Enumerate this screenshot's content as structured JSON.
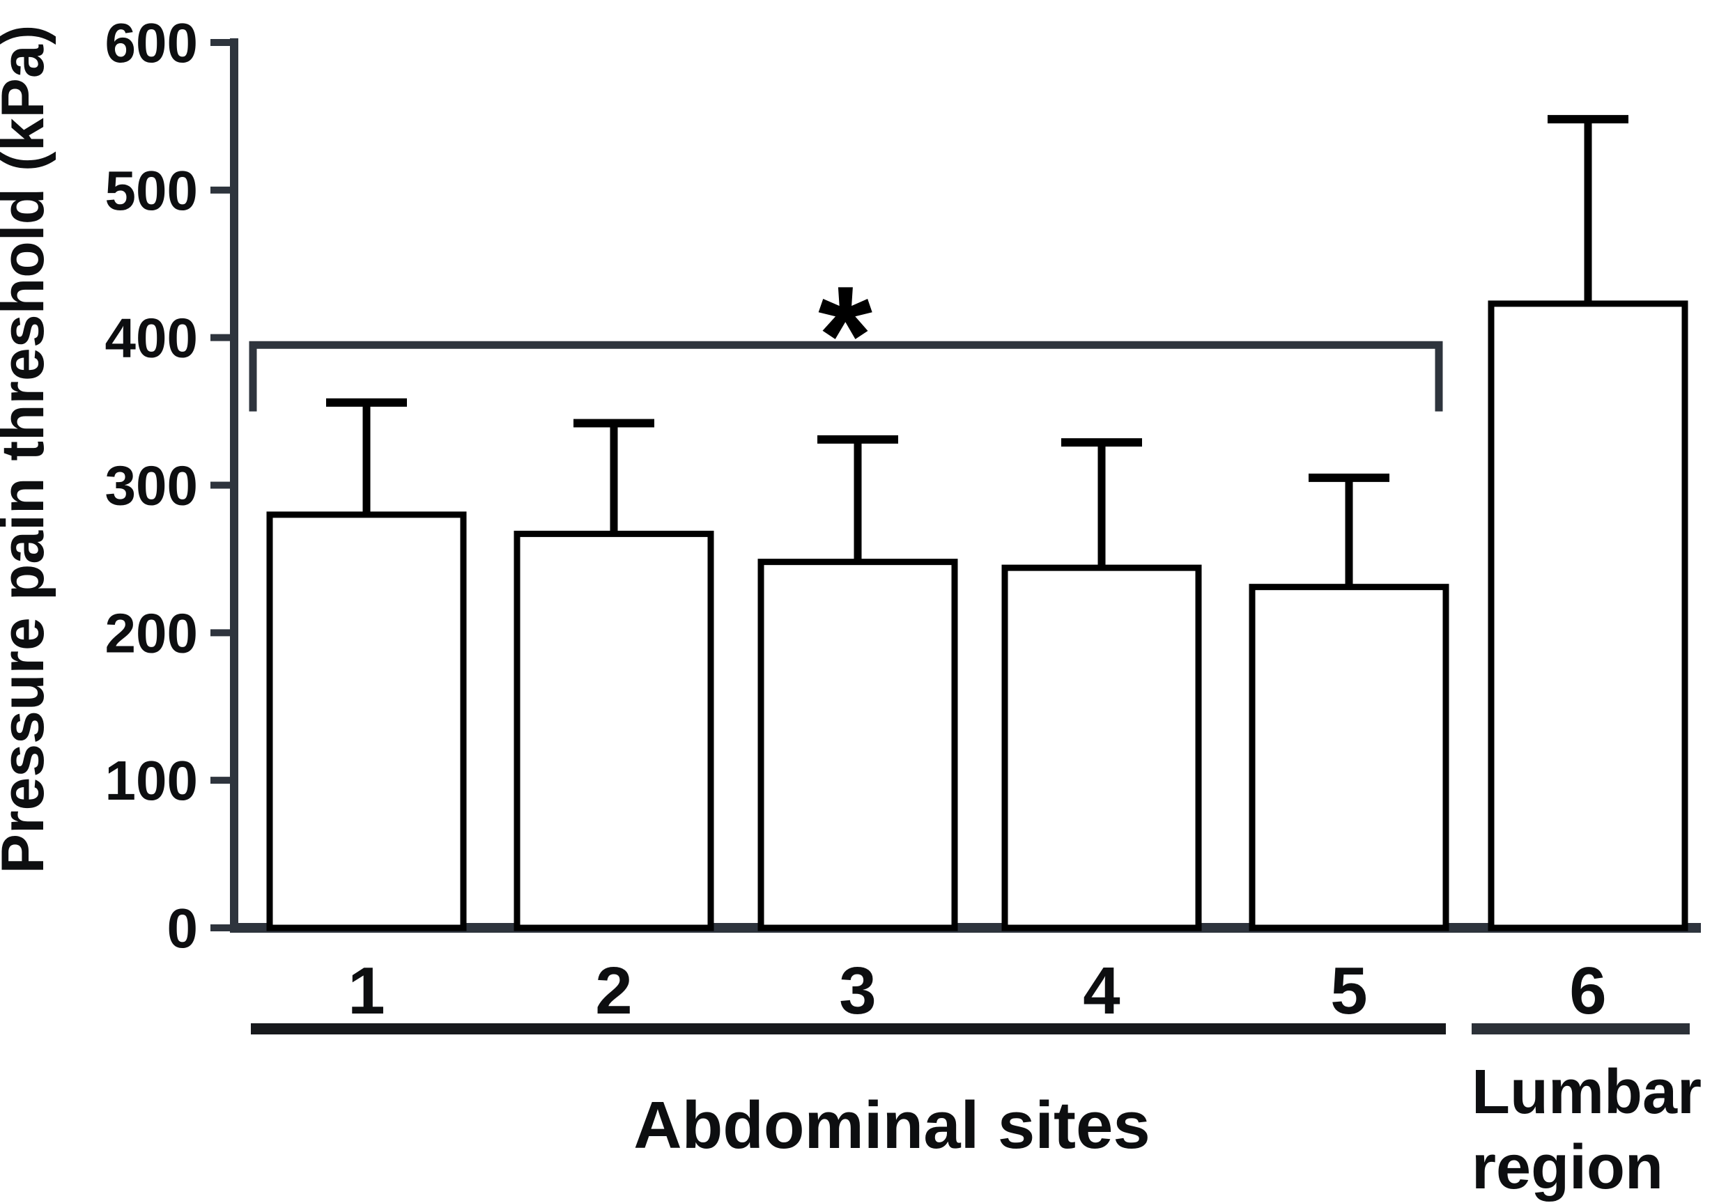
{
  "figure": {
    "background": "#ffffff",
    "y_axis_label": "Pressure pain threshold (kPa)",
    "x_axis_label": "",
    "colors": {
      "axis": "#2e343d",
      "bar_stroke": "#000000",
      "bar_fill": "#ffffff",
      "error_bar": "#000000",
      "text": "#0d0e10",
      "bracket": "#2e343d",
      "group1_underline": "#17191c",
      "group2_underline": "#2c3138"
    }
  },
  "chart_data": {
    "type": "bar",
    "title": "",
    "ylabel": "Pressure pain threshold (kPa)",
    "xlabel": "",
    "ylim": [
      0,
      600
    ],
    "yticks": [
      0,
      100,
      200,
      300,
      400,
      500,
      600
    ],
    "ytick_labels": [
      "0",
      "100",
      "200",
      "300",
      "400",
      "500",
      "600"
    ],
    "grid": false,
    "legend": false,
    "categories": [
      "1",
      "2",
      "3",
      "4",
      "5",
      "6"
    ],
    "values": [
      280,
      267,
      248,
      244,
      231,
      423
    ],
    "errors_upper": [
      76,
      75,
      83,
      85,
      74,
      125
    ],
    "error_caps_at": [
      356,
      342,
      331,
      329,
      305,
      548
    ],
    "series_name": "Pressure pain threshold",
    "groups": [
      {
        "label": "Abdominal sites",
        "lines": [
          "Abdominal sites"
        ],
        "category_span": [
          "1",
          "5"
        ]
      },
      {
        "label": "Lumbar region",
        "lines": [
          "Lumbar",
          "region"
        ],
        "category_span": [
          "6",
          "6"
        ]
      }
    ],
    "significance": {
      "symbol": "*",
      "spans_categories": [
        "1",
        "5"
      ],
      "bracket_level_kpa": 395,
      "bracket_end_drop_to_kpa": 350
    }
  }
}
